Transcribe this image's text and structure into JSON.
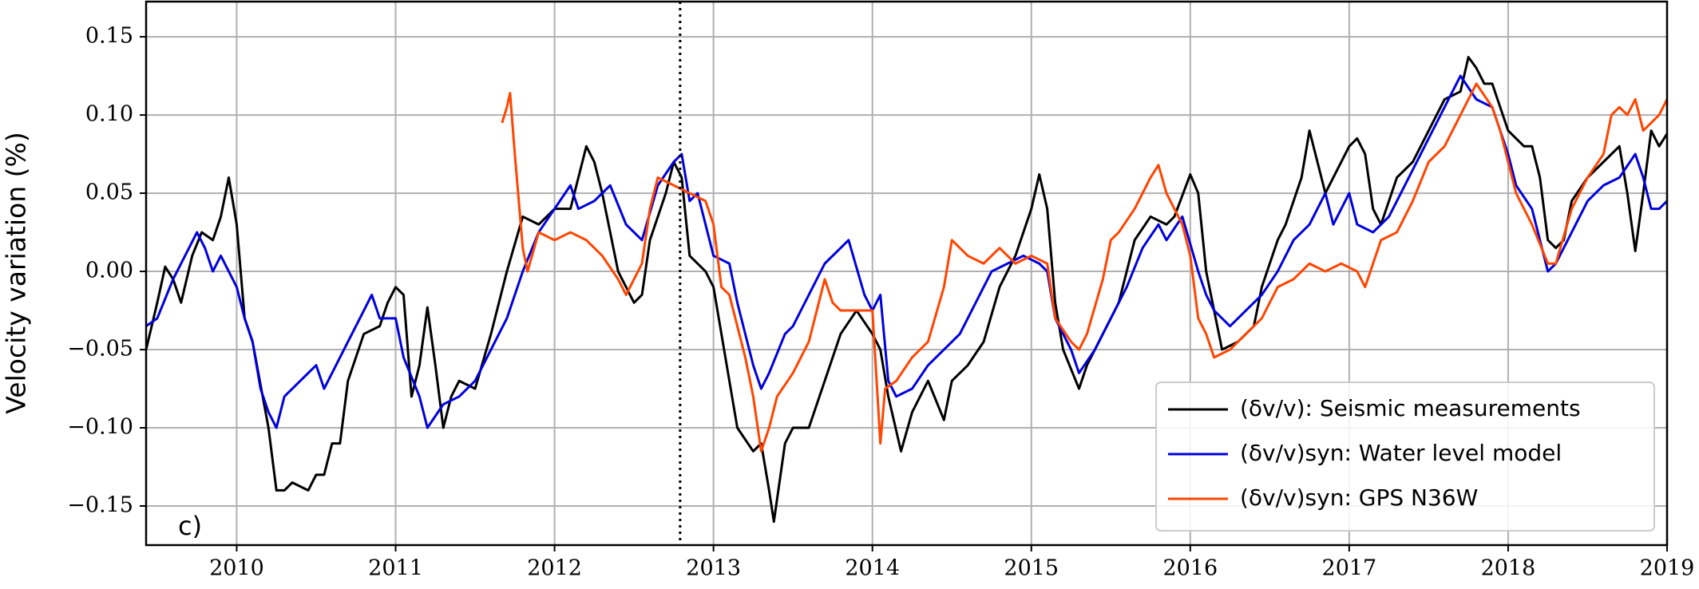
{
  "chart_data": {
    "type": "line",
    "ylabel": "Velocity variation (%)",
    "annotation": "c)",
    "xlim": [
      2009.43,
      2019
    ],
    "ylim": [
      -0.175,
      0.1725
    ],
    "xticks": [
      2010,
      2011,
      2012,
      2013,
      2014,
      2015,
      2016,
      2017,
      2018,
      2019
    ],
    "yticks": [
      {
        "value": -0.15,
        "label": "−0.15"
      },
      {
        "value": -0.1,
        "label": "−0.10"
      },
      {
        "value": -0.05,
        "label": "−0.05"
      },
      {
        "value": 0,
        "label": "0.00"
      },
      0.05,
      {
        "value": 0.1,
        "label": "0.10"
      },
      0.15
    ],
    "grid": true,
    "legend": "lower right",
    "vline": 2012.79,
    "series": [
      {
        "name": "(δv/v): Seismic measurements",
        "color": "#000000",
        "x": [
          2009.43,
          2009.5,
          2009.55,
          2009.6,
          2009.65,
          2009.72,
          2009.78,
          2009.85,
          2009.9,
          2009.95,
          2010.0,
          2010.05,
          2010.1,
          2010.2,
          2010.25,
          2010.3,
          2010.35,
          2010.45,
          2010.5,
          2010.55,
          2010.6,
          2010.65,
          2010.7,
          2010.8,
          2010.9,
          2010.95,
          2011.0,
          2011.05,
          2011.1,
          2011.15,
          2011.2,
          2011.25,
          2011.3,
          2011.35,
          2011.4,
          2011.5,
          2011.6,
          2011.7,
          2011.8,
          2011.9,
          2012.0,
          2012.1,
          2012.15,
          2012.2,
          2012.25,
          2012.3,
          2012.4,
          2012.5,
          2012.55,
          2012.6,
          2012.7,
          2012.75,
          2012.8,
          2012.85,
          2012.95,
          2013.0,
          2013.05,
          2013.1,
          2013.15,
          2013.25,
          2013.3,
          2013.35,
          2013.38,
          2013.45,
          2013.5,
          2013.6,
          2013.7,
          2013.8,
          2013.9,
          2014.0,
          2014.05,
          2014.1,
          2014.18,
          2014.25,
          2014.35,
          2014.45,
          2014.5,
          2014.6,
          2014.7,
          2014.8,
          2014.9,
          2015.0,
          2015.05,
          2015.1,
          2015.15,
          2015.2,
          2015.3,
          2015.35,
          2015.45,
          2015.55,
          2015.65,
          2015.75,
          2015.85,
          2015.9,
          2016.0,
          2016.05,
          2016.1,
          2016.2,
          2016.3,
          2016.4,
          2016.45,
          2016.55,
          2016.6,
          2016.7,
          2016.75,
          2016.8,
          2016.85,
          2016.9,
          2017.0,
          2017.05,
          2017.1,
          2017.15,
          2017.2,
          2017.3,
          2017.4,
          2017.5,
          2017.6,
          2017.7,
          2017.75,
          2017.8,
          2017.85,
          2017.9,
          2018.0,
          2018.1,
          2018.15,
          2018.2,
          2018.25,
          2018.3,
          2018.35,
          2018.4,
          2018.5,
          2018.6,
          2018.7,
          2018.75,
          2018.8,
          2018.85,
          2018.9,
          2018.95,
          2019.0
        ],
        "values": [
          -0.05,
          -0.02,
          0.003,
          -0.005,
          -0.02,
          0.01,
          0.025,
          0.02,
          0.035,
          0.06,
          0.03,
          -0.03,
          -0.045,
          -0.1,
          -0.14,
          -0.14,
          -0.135,
          -0.14,
          -0.13,
          -0.13,
          -0.11,
          -0.11,
          -0.07,
          -0.04,
          -0.035,
          -0.02,
          -0.01,
          -0.015,
          -0.08,
          -0.06,
          -0.023,
          -0.06,
          -0.1,
          -0.08,
          -0.07,
          -0.075,
          -0.04,
          0.0,
          0.035,
          0.03,
          0.04,
          0.04,
          0.06,
          0.08,
          0.07,
          0.05,
          0.0,
          -0.02,
          -0.015,
          0.02,
          0.05,
          0.07,
          0.06,
          0.01,
          0.0,
          -0.01,
          -0.04,
          -0.07,
          -0.1,
          -0.115,
          -0.11,
          -0.14,
          -0.16,
          -0.11,
          -0.1,
          -0.1,
          -0.07,
          -0.04,
          -0.025,
          -0.04,
          -0.05,
          -0.08,
          -0.115,
          -0.09,
          -0.07,
          -0.095,
          -0.07,
          -0.06,
          -0.045,
          -0.01,
          0.01,
          0.04,
          0.062,
          0.04,
          -0.02,
          -0.05,
          -0.075,
          -0.06,
          -0.04,
          -0.02,
          0.02,
          0.035,
          0.03,
          0.035,
          0.062,
          0.05,
          0.0,
          -0.05,
          -0.045,
          -0.035,
          -0.01,
          0.02,
          0.03,
          0.06,
          0.09,
          0.07,
          0.05,
          0.06,
          0.08,
          0.085,
          0.075,
          0.04,
          0.03,
          0.06,
          0.07,
          0.09,
          0.11,
          0.115,
          0.137,
          0.13,
          0.12,
          0.12,
          0.09,
          0.08,
          0.08,
          0.06,
          0.02,
          0.015,
          0.02,
          0.045,
          0.06,
          0.07,
          0.08,
          0.05,
          0.013,
          0.05,
          0.09,
          0.08,
          0.088
        ]
      },
      {
        "name": "(δv/v)syn: Water level model",
        "color": "#0000dd",
        "x": [
          2009.43,
          2009.5,
          2009.6,
          2009.7,
          2009.75,
          2009.8,
          2009.85,
          2009.9,
          2010.0,
          2010.05,
          2010.1,
          2010.15,
          2010.2,
          2010.25,
          2010.3,
          2010.4,
          2010.5,
          2010.55,
          2010.6,
          2010.7,
          2010.8,
          2010.85,
          2010.9,
          2011.0,
          2011.05,
          2011.15,
          2011.2,
          2011.3,
          2011.4,
          2011.5,
          2011.6,
          2011.7,
          2011.8,
          2011.9,
          2012.0,
          2012.1,
          2012.15,
          2012.25,
          2012.35,
          2012.45,
          2012.55,
          2012.65,
          2012.75,
          2012.8,
          2012.85,
          2012.9,
          2013.0,
          2013.1,
          2013.15,
          2013.2,
          2013.25,
          2013.3,
          2013.35,
          2013.45,
          2013.5,
          2013.6,
          2013.7,
          2013.8,
          2013.85,
          2013.95,
          2014.0,
          2014.05,
          2014.1,
          2014.15,
          2014.25,
          2014.35,
          2014.45,
          2014.55,
          2014.65,
          2014.75,
          2014.85,
          2014.95,
          2015.05,
          2015.1,
          2015.15,
          2015.25,
          2015.3,
          2015.4,
          2015.5,
          2015.6,
          2015.7,
          2015.8,
          2015.85,
          2015.95,
          2016.05,
          2016.1,
          2016.15,
          2016.25,
          2016.35,
          2016.45,
          2016.55,
          2016.65,
          2016.75,
          2016.85,
          2016.9,
          2017.0,
          2017.05,
          2017.15,
          2017.25,
          2017.35,
          2017.45,
          2017.55,
          2017.65,
          2017.7,
          2017.8,
          2017.9,
          2018.0,
          2018.05,
          2018.15,
          2018.2,
          2018.25,
          2018.3,
          2018.4,
          2018.5,
          2018.6,
          2018.7,
          2018.8,
          2018.85,
          2018.9,
          2018.95,
          2019.0
        ],
        "values": [
          -0.035,
          -0.03,
          -0.005,
          0.015,
          0.025,
          0.015,
          0.0,
          0.01,
          -0.01,
          -0.03,
          -0.045,
          -0.075,
          -0.09,
          -0.1,
          -0.08,
          -0.07,
          -0.06,
          -0.075,
          -0.065,
          -0.045,
          -0.025,
          -0.015,
          -0.03,
          -0.03,
          -0.055,
          -0.08,
          -0.1,
          -0.085,
          -0.08,
          -0.07,
          -0.05,
          -0.03,
          0.0,
          0.025,
          0.04,
          0.055,
          0.04,
          0.045,
          0.055,
          0.03,
          0.02,
          0.055,
          0.07,
          0.075,
          0.045,
          0.05,
          0.01,
          0.005,
          -0.02,
          -0.04,
          -0.06,
          -0.075,
          -0.065,
          -0.04,
          -0.035,
          -0.015,
          0.005,
          0.015,
          0.02,
          -0.015,
          -0.025,
          -0.015,
          -0.07,
          -0.08,
          -0.075,
          -0.06,
          -0.05,
          -0.04,
          -0.02,
          0.0,
          0.005,
          0.01,
          0.005,
          0.0,
          -0.03,
          -0.05,
          -0.065,
          -0.05,
          -0.03,
          -0.01,
          0.015,
          0.03,
          0.02,
          0.035,
          0.0,
          -0.015,
          -0.025,
          -0.035,
          -0.025,
          -0.015,
          0.0,
          0.02,
          0.03,
          0.05,
          0.03,
          0.05,
          0.03,
          0.025,
          0.035,
          0.055,
          0.075,
          0.095,
          0.115,
          0.125,
          0.11,
          0.105,
          0.075,
          0.055,
          0.04,
          0.02,
          0.0,
          0.005,
          0.025,
          0.045,
          0.055,
          0.06,
          0.075,
          0.06,
          0.04,
          0.04,
          0.045
        ]
      },
      {
        "name": "(δv/v)syn: GPS N36W",
        "color": "#ff4500",
        "x": [
          2011.67,
          2011.7,
          2011.72,
          2011.75,
          2011.8,
          2011.83,
          2011.9,
          2012.0,
          2012.1,
          2012.2,
          2012.3,
          2012.4,
          2012.45,
          2012.5,
          2012.55,
          2012.6,
          2012.65,
          2012.75,
          2012.85,
          2012.95,
          2013.0,
          2013.05,
          2013.1,
          2013.15,
          2013.2,
          2013.25,
          2013.3,
          2013.35,
          2013.4,
          2013.5,
          2013.6,
          2013.7,
          2013.75,
          2013.8,
          2013.9,
          2014.0,
          2014.05,
          2014.08,
          2014.15,
          2014.25,
          2014.35,
          2014.45,
          2014.5,
          2014.6,
          2014.7,
          2014.8,
          2014.9,
          2015.0,
          2015.1,
          2015.15,
          2015.25,
          2015.3,
          2015.35,
          2015.45,
          2015.5,
          2015.55,
          2015.65,
          2015.75,
          2015.8,
          2015.85,
          2015.95,
          2016.0,
          2016.05,
          2016.1,
          2016.15,
          2016.25,
          2016.35,
          2016.45,
          2016.55,
          2016.65,
          2016.75,
          2016.85,
          2016.95,
          2017.05,
          2017.1,
          2017.2,
          2017.3,
          2017.4,
          2017.5,
          2017.6,
          2017.7,
          2017.8,
          2017.9,
          2017.95,
          2018.05,
          2018.15,
          2018.25,
          2018.3,
          2018.4,
          2018.5,
          2018.6,
          2018.65,
          2018.7,
          2018.75,
          2018.8,
          2018.85,
          2018.95,
          2019.0
        ],
        "values": [
          0.095,
          0.105,
          0.114,
          0.075,
          0.015,
          0.0,
          0.025,
          0.02,
          0.025,
          0.02,
          0.01,
          -0.005,
          -0.015,
          -0.005,
          0.005,
          0.04,
          0.06,
          0.055,
          0.05,
          0.045,
          0.03,
          -0.01,
          -0.015,
          -0.035,
          -0.055,
          -0.08,
          -0.115,
          -0.1,
          -0.08,
          -0.065,
          -0.045,
          -0.005,
          -0.02,
          -0.025,
          -0.025,
          -0.025,
          -0.11,
          -0.075,
          -0.07,
          -0.055,
          -0.045,
          -0.01,
          0.02,
          0.01,
          0.005,
          0.015,
          0.005,
          0.01,
          0.005,
          -0.03,
          -0.045,
          -0.05,
          -0.04,
          -0.005,
          0.02,
          0.025,
          0.04,
          0.06,
          0.068,
          0.05,
          0.03,
          0.01,
          -0.03,
          -0.04,
          -0.055,
          -0.05,
          -0.04,
          -0.03,
          -0.01,
          -0.005,
          0.005,
          0.0,
          0.005,
          0.0,
          -0.01,
          0.02,
          0.025,
          0.045,
          0.07,
          0.08,
          0.1,
          0.12,
          0.105,
          0.09,
          0.05,
          0.03,
          0.005,
          0.005,
          0.04,
          0.06,
          0.075,
          0.1,
          0.105,
          0.1,
          0.11,
          0.09,
          0.1,
          0.11
        ]
      }
    ]
  }
}
